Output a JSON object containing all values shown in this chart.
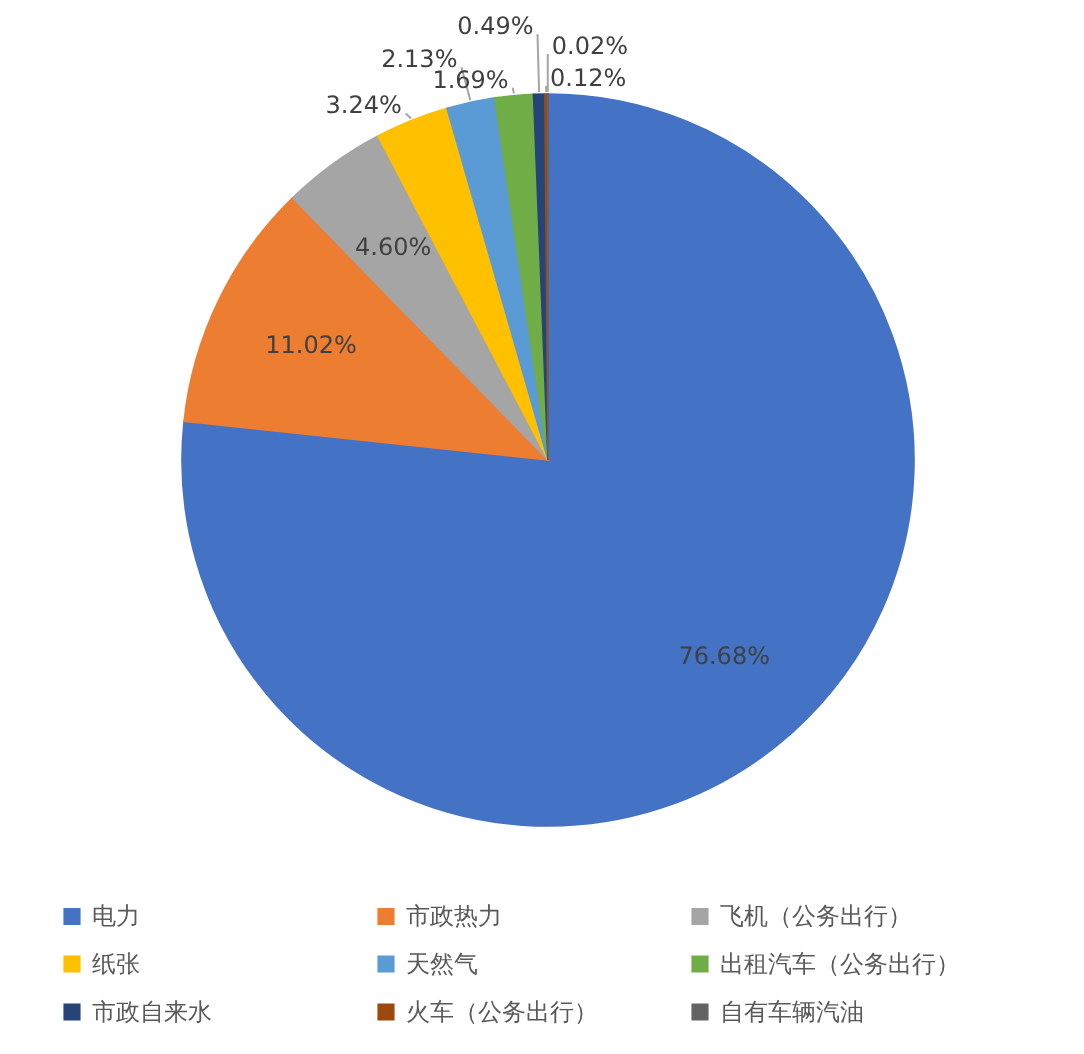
{
  "chart_data": {
    "type": "pie",
    "categories": [
      "电力",
      "市政热力",
      "飞机（公务出行）",
      "纸张",
      "天然气",
      "出租汽车（公务出行）",
      "市政自来水",
      "火车（公务出行）",
      "自有车辆汽油"
    ],
    "values": [
      76.68,
      11.02,
      4.6,
      3.24,
      2.13,
      1.69,
      0.49,
      0.12,
      0.02
    ],
    "value_labels": [
      "76.68%",
      "11.02%",
      "4.60%",
      "3.24%",
      "2.13%",
      "1.69%",
      "0.49%",
      "0.12%",
      "0.02%"
    ],
    "colors": [
      "#4472c4",
      "#ed7d31",
      "#a5a5a5",
      "#ffc000",
      "#5b9bd5",
      "#70ad47",
      "#264478",
      "#9e480e",
      "#636363"
    ],
    "legend": "bottom"
  }
}
